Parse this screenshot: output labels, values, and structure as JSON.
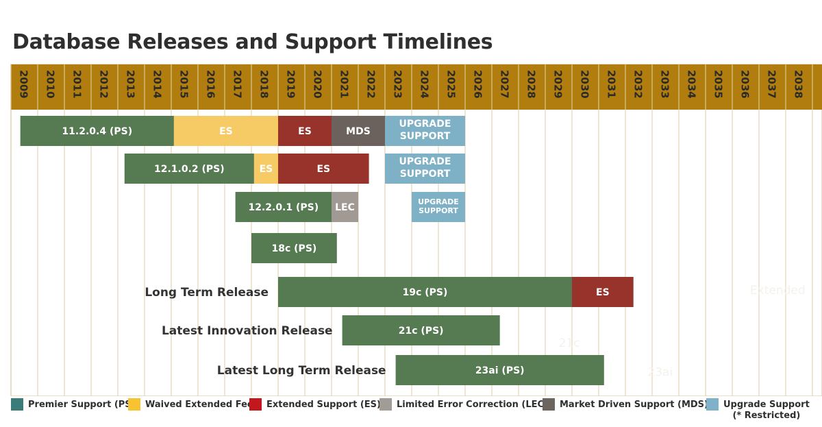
{
  "chart_data": {
    "type": "gantt",
    "title": "Database Releases and Support Timelines",
    "x_axis": {
      "years": [
        "2009",
        "2010",
        "2011",
        "2012",
        "2013",
        "2014",
        "2015",
        "2016",
        "2017",
        "2018",
        "2019",
        "2020",
        "2021",
        "2022",
        "2023",
        "2024",
        "2025",
        "2026",
        "2027",
        "2028",
        "2029",
        "2030",
        "2031",
        "2032",
        "2033",
        "2034",
        "2035",
        "2036",
        "2037",
        "2038"
      ],
      "continuation": "...",
      "range": [
        2009,
        2039
      ]
    },
    "rows": [
      {
        "row_label": "",
        "bars": [
          {
            "label": "11.2.0.4 (PS)",
            "category": "PS",
            "start": 2009.35,
            "end": 2015.1
          },
          {
            "label": "ES",
            "category": "WEF",
            "start": 2015.1,
            "end": 2019.0
          },
          {
            "label": "ES",
            "category": "ES",
            "start": 2019.0,
            "end": 2021.0
          },
          {
            "label": "MDS",
            "category": "MDS",
            "start": 2021.0,
            "end": 2023.0
          },
          {
            "label": "UPGRADE SUPPORT",
            "category": "US",
            "start": 2023.0,
            "end": 2026.0
          }
        ]
      },
      {
        "row_label": "",
        "bars": [
          {
            "label": "12.1.0.2 (PS)",
            "category": "PS",
            "start": 2013.25,
            "end": 2018.1
          },
          {
            "label": "ES",
            "category": "WEF",
            "start": 2018.1,
            "end": 2019.0
          },
          {
            "label": "ES",
            "category": "ES",
            "start": 2019.0,
            "end": 2022.4
          },
          {
            "label": "UPGRADE SUPPORT",
            "category": "US",
            "start": 2023.0,
            "end": 2026.0
          }
        ]
      },
      {
        "row_label": "",
        "bars": [
          {
            "label": "12.2.0.1 (PS)",
            "category": "PS",
            "start": 2017.4,
            "end": 2021.0
          },
          {
            "label": "LEC",
            "category": "LEC",
            "start": 2021.0,
            "end": 2022.0
          },
          {
            "label": "UPGRADE SUPPORT",
            "category": "US",
            "start": 2024.0,
            "end": 2026.0
          }
        ]
      },
      {
        "row_label": "",
        "bars": [
          {
            "label": "18c (PS)",
            "category": "PS",
            "start": 2018.0,
            "end": 2021.2
          }
        ]
      },
      {
        "row_label": "Long Term Release",
        "bars": [
          {
            "label": "19c (PS)",
            "category": "PS",
            "start": 2019.0,
            "end": 2030.0
          },
          {
            "label": "ES",
            "category": "ES",
            "start": 2030.0,
            "end": 2032.3
          }
        ]
      },
      {
        "row_label": "Latest Innovation Release",
        "bars": [
          {
            "label": "21c (PS)",
            "category": "PS",
            "start": 2021.4,
            "end": 2027.3
          }
        ]
      },
      {
        "row_label": "Latest Long Term Release",
        "bars": [
          {
            "label": "23ai (PS)",
            "category": "PS",
            "start": 2023.4,
            "end": 2031.2
          }
        ]
      }
    ],
    "faint_text": [
      {
        "text": "Extended",
        "year": 2037.7,
        "row": 4
      },
      {
        "text": "21c",
        "year": 2029.9,
        "row": 5.35
      },
      {
        "text": "23ai",
        "year": 2033.3,
        "row": 6.1
      }
    ]
  },
  "legend": [
    {
      "key": "PS",
      "label": "Premier Support (PS)",
      "color": "#3a7c7a"
    },
    {
      "key": "WEF",
      "label": "Waived Extended Fee",
      "color": "#f8c330"
    },
    {
      "key": "ES",
      "label": "Extended Support (ES)",
      "color": "#c2171d"
    },
    {
      "key": "LEC",
      "label": "Limited Error Correction (LEC)",
      "color": "#a29c96"
    },
    {
      "key": "MDS",
      "label": "Market Driven Support (MDS)",
      "color": "#6d6560"
    },
    {
      "key": "US",
      "label": "Upgrade Support",
      "note": "(* Restricted)",
      "color": "#7fb1c8"
    }
  ],
  "bar_colors": {
    "PS": "#567a52",
    "WEF": "#f6cb65",
    "ES": "#97332b",
    "LEC": "#a19a94",
    "MDS": "#6b625d",
    "US": "#7eb1c6"
  },
  "header_color": "#b07d0e",
  "grid_color": "#e3d6b4"
}
